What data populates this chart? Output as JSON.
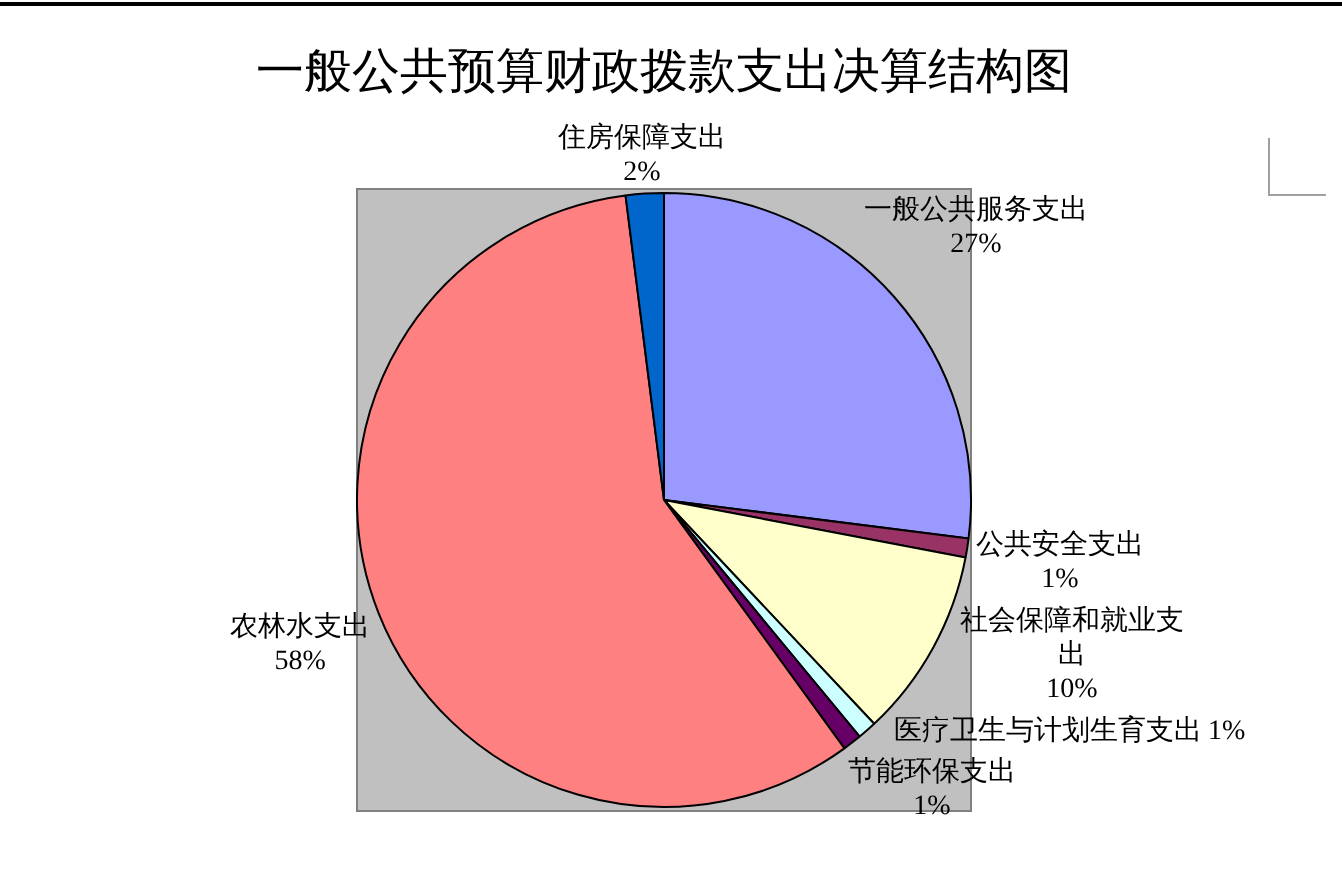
{
  "chart_data": {
    "type": "pie",
    "title": "一般公共预算财政拨款支出决算结构图",
    "categories": [
      "一般公共服务支出",
      "公共安全支出",
      "社会保障和就业支出",
      "医疗卫生与计划生育支出",
      "节能环保支出",
      "农林水支出",
      "住房保障支出"
    ],
    "values": [
      27,
      1,
      10,
      1,
      1,
      58,
      2
    ],
    "value_labels": [
      "27%",
      "1%",
      "10%",
      "1%",
      "1%",
      "58%",
      "2%"
    ],
    "colors": [
      "#9999ff",
      "#993366",
      "#ffffcc",
      "#ccffff",
      "#660066",
      "#ff8080",
      "#0066cc"
    ]
  }
}
